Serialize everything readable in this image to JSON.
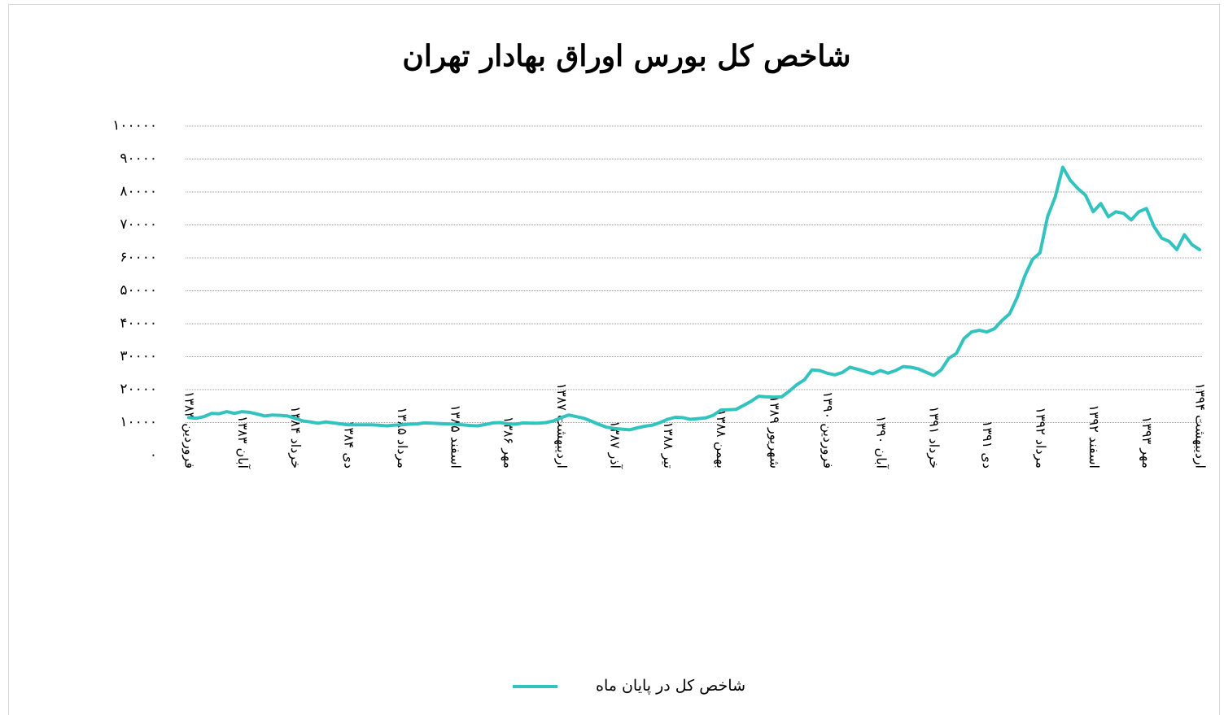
{
  "chart_data": {
    "type": "line",
    "title": "شاخص کل بورس اوراق بهادار تهران",
    "categories": [
      "فروردین ۱۳۸۳",
      null,
      null,
      null,
      null,
      null,
      null,
      "آبان ۱۳۸۳",
      null,
      null,
      null,
      null,
      null,
      null,
      "خرداد ۱۳۸۴",
      null,
      null,
      null,
      null,
      null,
      null,
      "دی ۱۳۸۴",
      null,
      null,
      null,
      null,
      null,
      null,
      "مرداد ۱۳۸۵",
      null,
      null,
      null,
      null,
      null,
      null,
      "اسفند ۱۳۸۵",
      null,
      null,
      null,
      null,
      null,
      null,
      "مهر ۱۳۸۶",
      null,
      null,
      null,
      null,
      null,
      null,
      "اردیبهشت ۱۳۸۷",
      null,
      null,
      null,
      null,
      null,
      null,
      "آذر ۱۳۸۷",
      null,
      null,
      null,
      null,
      null,
      null,
      "تیر ۱۳۸۸",
      null,
      null,
      null,
      null,
      null,
      null,
      "بهمن ۱۳۸۸",
      null,
      null,
      null,
      null,
      null,
      null,
      "شهریور ۱۳۸۹",
      null,
      null,
      null,
      null,
      null,
      null,
      "فروردین ۱۳۹۰",
      null,
      null,
      null,
      null,
      null,
      null,
      "آبان ۱۳۹۰",
      null,
      null,
      null,
      null,
      null,
      null,
      "خرداد ۱۳۹۱",
      null,
      null,
      null,
      null,
      null,
      null,
      "دی ۱۳۹۱",
      null,
      null,
      null,
      null,
      null,
      null,
      "مرداد ۱۳۹۲",
      null,
      null,
      null,
      null,
      null,
      null,
      "اسفند ۱۳۹۲",
      null,
      null,
      null,
      null,
      null,
      null,
      "مهر ۱۳۹۳",
      null,
      null,
      null,
      null,
      null,
      null,
      "اردیبهشت ۱۳۹۴"
    ],
    "series": [
      {
        "name": "شاخص کل در پایان ماه",
        "color": "#33c3bf",
        "values": [
          11500,
          11300,
          11800,
          12800,
          12700,
          13300,
          12800,
          13300,
          13100,
          12600,
          12000,
          12300,
          12200,
          12000,
          11300,
          10500,
          10200,
          9800,
          10200,
          9900,
          9600,
          9300,
          9300,
          9300,
          9300,
          9200,
          9000,
          9200,
          9300,
          9500,
          9600,
          9900,
          9800,
          9700,
          9600,
          9500,
          9300,
          9100,
          9000,
          9400,
          9900,
          10000,
          9600,
          9500,
          9900,
          9800,
          9800,
          10000,
          10500,
          11500,
          12300,
          11800,
          11300,
          10400,
          9400,
          8600,
          8200,
          8000,
          7800,
          8400,
          8900,
          9200,
          10000,
          11000,
          11600,
          11500,
          11000,
          11200,
          11400,
          12200,
          13800,
          13900,
          14000,
          15200,
          16500,
          18000,
          17800,
          17700,
          17800,
          19500,
          21500,
          23000,
          26000,
          25800,
          25000,
          24500,
          25200,
          26800,
          26200,
          25500,
          24800,
          25800,
          25000,
          25800,
          27000,
          26800,
          26300,
          25300,
          24300,
          26000,
          29500,
          31000,
          35500,
          37500,
          38000,
          37500,
          38500,
          41000,
          43000,
          48000,
          54500,
          59500,
          61500,
          72500,
          78500,
          87500,
          83500,
          81000,
          79000,
          74000,
          76500,
          72500,
          74000,
          73500,
          71500,
          74000,
          75000,
          69500,
          66000,
          65000,
          62500,
          67000,
          64000,
          62500
        ]
      }
    ],
    "ylim": [
      0,
      100000
    ],
    "yticks": [
      {
        "value": 0,
        "label": "۰"
      },
      {
        "value": 10000,
        "label": "۱۰۰۰۰"
      },
      {
        "value": 20000,
        "label": "۲۰۰۰۰"
      },
      {
        "value": 30000,
        "label": "۳۰۰۰۰"
      },
      {
        "value": 40000,
        "label": "۴۰۰۰۰"
      },
      {
        "value": 50000,
        "label": "۵۰۰۰۰"
      },
      {
        "value": 60000,
        "label": "۶۰۰۰۰"
      },
      {
        "value": 70000,
        "label": "۷۰۰۰۰"
      },
      {
        "value": 80000,
        "label": "۸۰۰۰۰"
      },
      {
        "value": 90000,
        "label": "۹۰۰۰۰"
      },
      {
        "value": 100000,
        "label": "۱۰۰۰۰۰"
      }
    ],
    "grid": true,
    "legend": "bottom"
  }
}
